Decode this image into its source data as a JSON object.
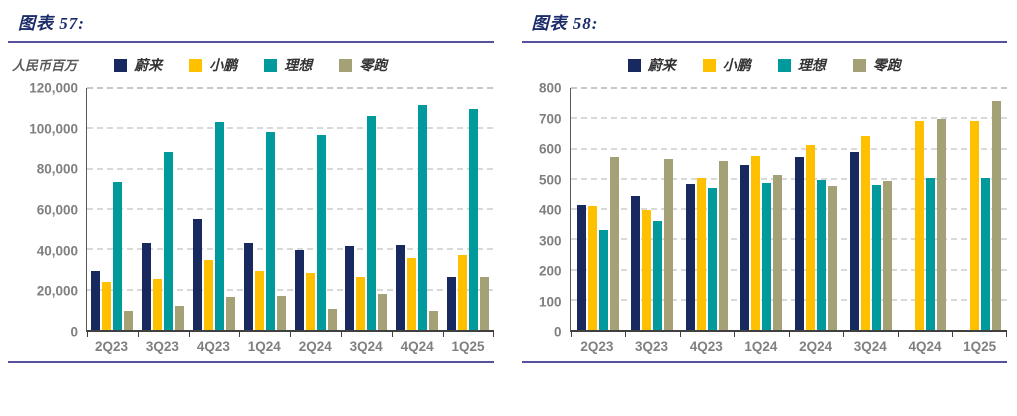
{
  "figures": [
    {
      "title": "图表  57:",
      "unit_label": "人民币百万"
    },
    {
      "title": "图表  58:",
      "unit_label": ""
    }
  ],
  "colors": {
    "nio_navy": "#17295e",
    "xpeng_yellow": "#ffc000",
    "li_teal": "#00999c",
    "leap_olive": "#a3a175",
    "rule_purple": "#55519e",
    "title_navy": "#1d2d6b",
    "axis_text_gray": "#7f7f7f",
    "gridline_gray": "#d9d9d9"
  },
  "chart_data": [
    {
      "type": "bar",
      "title": "图表  57:",
      "ylabel": "人民币百万",
      "xlabel": "",
      "categories": [
        "2Q23",
        "3Q23",
        "4Q23",
        "1Q24",
        "2Q24",
        "3Q24",
        "4Q24",
        "1Q25"
      ],
      "series": [
        {
          "name": "蔚来",
          "color": "#17295e",
          "values": [
            29300,
            43200,
            55000,
            43000,
            39500,
            41500,
            42300,
            26300
          ]
        },
        {
          "name": "小鹏",
          "color": "#ffc000",
          "values": [
            23700,
            25300,
            34500,
            29500,
            28200,
            26300,
            35700,
            37300
          ]
        },
        {
          "name": "理想",
          "color": "#00999c",
          "values": [
            73500,
            88300,
            103000,
            98000,
            96500,
            106000,
            111500,
            109500
          ]
        },
        {
          "name": "零跑",
          "color": "#a3a175",
          "values": [
            9600,
            11800,
            16400,
            16900,
            10600,
            18000,
            9500,
            26200
          ]
        }
      ],
      "ylim": [
        0,
        120000
      ],
      "y_ticks": [
        "0",
        "20,000",
        "40,000",
        "60,000",
        "80,000",
        "100,000",
        "120,000"
      ],
      "grid": true,
      "legend_position": "top"
    },
    {
      "type": "bar",
      "title": "图表  58:",
      "ylabel": "",
      "xlabel": "",
      "categories": [
        "2Q23",
        "3Q23",
        "4Q23",
        "1Q24",
        "2Q24",
        "3Q24",
        "4Q24",
        "1Q25"
      ],
      "series": [
        {
          "name": "蔚来",
          "color": "#17295e",
          "values": [
            412,
            442,
            483,
            544,
            572,
            589,
            null,
            null
          ]
        },
        {
          "name": "小鹏",
          "color": "#ffc000",
          "values": [
            410,
            396,
            502,
            575,
            611,
            640,
            692,
            692
          ]
        },
        {
          "name": "理想",
          "color": "#00999c",
          "values": [
            331,
            360,
            471,
            485,
            497,
            480,
            502,
            502
          ]
        },
        {
          "name": "零跑",
          "color": "#a3a175",
          "values": [
            571,
            566,
            558,
            512,
            476,
            493,
            698,
            758
          ]
        }
      ],
      "ylim": [
        0,
        800
      ],
      "y_ticks": [
        "0",
        "100",
        "200",
        "300",
        "400",
        "500",
        "600",
        "700",
        "800"
      ],
      "grid": true,
      "legend_position": "top"
    }
  ]
}
